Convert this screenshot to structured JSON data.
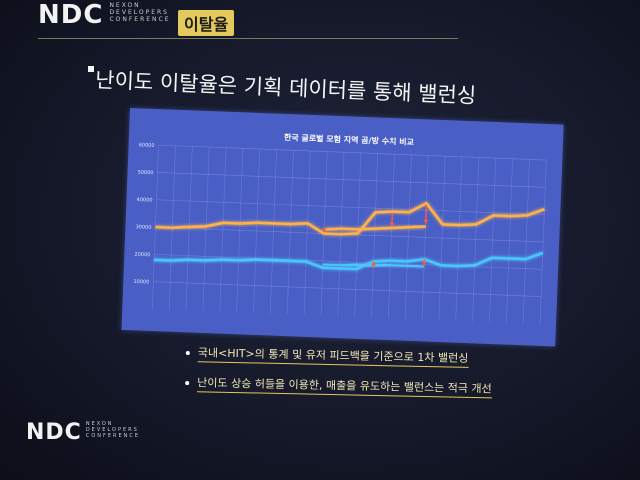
{
  "header": {
    "logo_mark": "NDC",
    "logo_lines": [
      "NEXON",
      "DEVELOPERS",
      "CONFERENCE"
    ],
    "section_tag": "이탈율"
  },
  "slide": {
    "title": "난이도 이탈율은 기획 데이터를 통해 밸런싱",
    "bullets": [
      "국내<HIT>의 통계 및 유저 피드백을 기준으로 1차 밸런싱",
      "난이도 상승 허들을 이용한, 매출을 유도하는 밸런스는 적극 개선"
    ]
  },
  "footer": {
    "logo_mark": "NDC",
    "logo_lines": [
      "NEXON",
      "DEVELOPERS",
      "CONFERENCE"
    ]
  },
  "colors": {
    "chart_background": "#4a5fc6",
    "series_orange": "#ffb24a",
    "series_blue": "#49c8ff",
    "arrow": "#ff5a3c",
    "accent": "#e4c95c"
  },
  "chart_data": {
    "type": "line",
    "title": "한국 글로벌 모험 지역 곰/방 수치 비교",
    "ylim": [
      0,
      60000
    ],
    "y_ticks": [
      "60000",
      "50000",
      "40000",
      "30000",
      "20000",
      "10000"
    ],
    "y_tick_values": [
      60000,
      50000,
      40000,
      30000,
      20000,
      10000
    ],
    "x_count": 24,
    "grid": true,
    "series": [
      {
        "color": "#ffb24a",
        "values": [
          30000,
          30000,
          30500,
          31000,
          32500,
          32500,
          33000,
          33000,
          33000,
          33500,
          30000,
          30000,
          30500,
          38500,
          39000,
          39000,
          42500,
          35000,
          35000,
          35500,
          39000,
          39000,
          39500,
          42000
        ]
      },
      {
        "color": "#ffb24a",
        "values": [
          null,
          null,
          null,
          null,
          null,
          null,
          null,
          null,
          null,
          null,
          31500,
          32000,
          32000,
          32500,
          33000,
          33500,
          34000,
          null,
          null,
          null,
          null,
          null,
          null,
          null
        ]
      },
      {
        "color": "#49c8ff",
        "values": [
          18000,
          18000,
          18500,
          18500,
          19000,
          19000,
          19500,
          19500,
          19500,
          19500,
          17500,
          17500,
          17500,
          20500,
          21000,
          21000,
          22000,
          20000,
          20000,
          20500,
          23500,
          23500,
          23500,
          26000
        ]
      },
      {
        "color": "#49c8ff",
        "values": [
          null,
          null,
          null,
          null,
          null,
          null,
          null,
          null,
          null,
          null,
          18500,
          18500,
          19000,
          19000,
          19500,
          19500,
          19500,
          null,
          null,
          null,
          null,
          null,
          null,
          null
        ]
      }
    ],
    "arrows": [
      {
        "x_index": 10,
        "from": 31500,
        "to": 30500,
        "color": "#ff5a3c"
      },
      {
        "x_index": 14,
        "from": 38500,
        "to": 33500,
        "color": "#ff5a3c"
      },
      {
        "x_index": 16,
        "from": 42000,
        "to": 35000,
        "color": "#ff5a3c"
      },
      {
        "x_index": 13,
        "from": 18000,
        "to": 20500,
        "color": "#ff5a3c"
      },
      {
        "x_index": 16,
        "from": 19500,
        "to": 22000,
        "color": "#ff5a3c"
      }
    ]
  }
}
